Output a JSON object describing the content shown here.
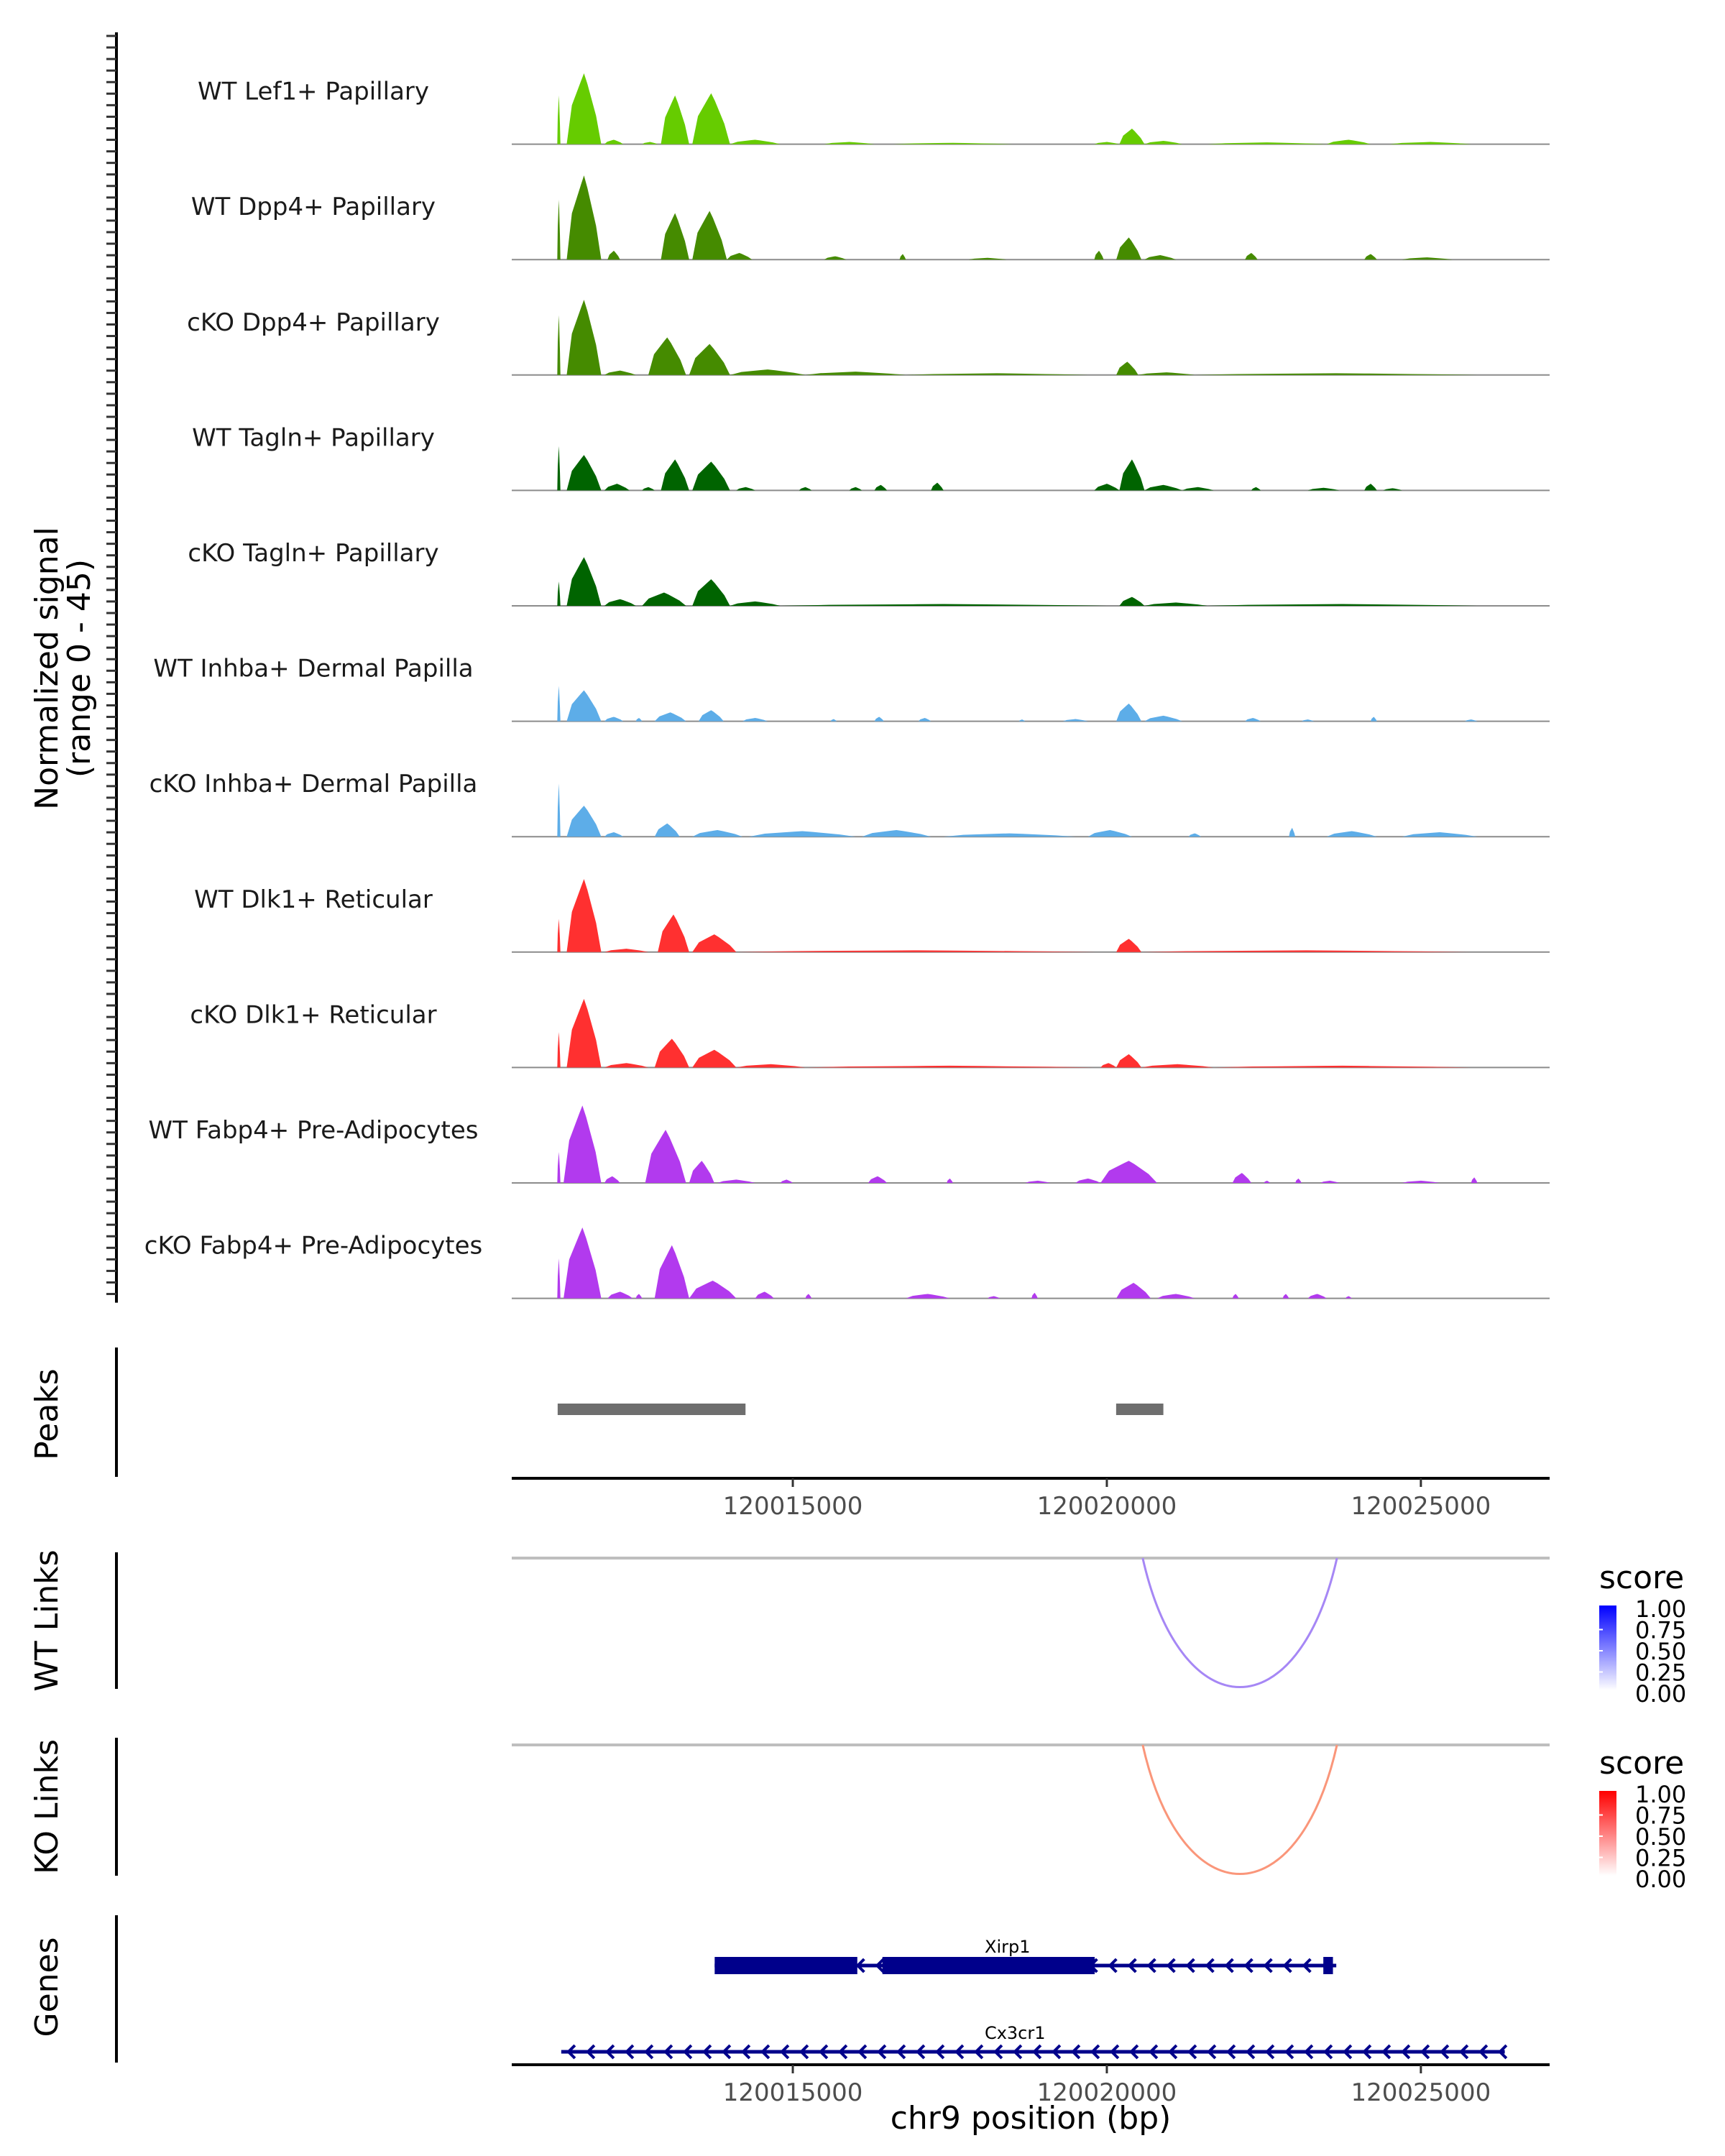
{
  "chart_data": {
    "type": "area",
    "title": "",
    "ylabel": "Normalized signal",
    "ylabel_range": "(range 0 - 45)",
    "ylim": [
      0,
      45
    ],
    "xlabel": "chr9 position (bp)",
    "xlim": [
      120010525,
      120027050
    ],
    "xticks": [
      120015000,
      120020000,
      120025000
    ],
    "xtick_labels": [
      "120015000",
      "120020000",
      "120025000"
    ],
    "coverage_tracks": [
      {
        "name": "WT Lef1+ Papillary",
        "color": "#66CC00",
        "peaks": [
          [
            120011250,
            120011300,
            22
          ],
          [
            120011400,
            120011950,
            32
          ],
          [
            120012000,
            120012300,
            2
          ],
          [
            120012600,
            120012850,
            1
          ],
          [
            120012900,
            120013350,
            22
          ],
          [
            120013400,
            120014000,
            23
          ],
          [
            120014000,
            120014800,
            2
          ],
          [
            120015500,
            120016300,
            1
          ],
          [
            120016600,
            120018500,
            0.6
          ],
          [
            120019800,
            120020200,
            1
          ],
          [
            120020200,
            120020600,
            7
          ],
          [
            120020600,
            120021200,
            1.5
          ],
          [
            120021600,
            120023500,
            0.8
          ],
          [
            120023500,
            120024200,
            2
          ],
          [
            120024500,
            120025800,
            1
          ]
        ]
      },
      {
        "name": "WT Dpp4+ Papillary",
        "color": "#458B00",
        "peaks": [
          [
            120011250,
            120011300,
            27
          ],
          [
            120011400,
            120011950,
            38
          ],
          [
            120012050,
            120012250,
            4
          ],
          [
            120012900,
            120013350,
            21
          ],
          [
            120013400,
            120013950,
            22
          ],
          [
            120013950,
            120014350,
            3
          ],
          [
            120015500,
            120015850,
            1.5
          ],
          [
            120016700,
            120016800,
            2.5
          ],
          [
            120017800,
            120018400,
            0.8
          ],
          [
            120019800,
            120019950,
            4
          ],
          [
            120020150,
            120020550,
            10
          ],
          [
            120020600,
            120021100,
            2
          ],
          [
            120022200,
            120022400,
            3
          ],
          [
            120024100,
            120024300,
            2.5
          ],
          [
            120024700,
            120025500,
            1
          ]
        ]
      },
      {
        "name": "cKO Dpp4+ Papillary",
        "color": "#458B00",
        "peaks": [
          [
            120011250,
            120011300,
            27
          ],
          [
            120011400,
            120011950,
            34
          ],
          [
            120012000,
            120012500,
            2
          ],
          [
            120012700,
            120013300,
            17
          ],
          [
            120013350,
            120014000,
            14
          ],
          [
            120014000,
            120015200,
            2.5
          ],
          [
            120015200,
            120016800,
            1.5
          ],
          [
            120016800,
            120019700,
            0.8
          ],
          [
            120020150,
            120020500,
            6
          ],
          [
            120020500,
            120021400,
            1.2
          ],
          [
            120021400,
            120025900,
            0.8
          ]
        ]
      },
      {
        "name": "WT Tagln+ Papillary",
        "color": "#006400",
        "peaks": [
          [
            120011250,
            120011300,
            20
          ],
          [
            120011400,
            120011950,
            16
          ],
          [
            120012000,
            120012400,
            3
          ],
          [
            120012600,
            120012800,
            1.5
          ],
          [
            120012900,
            120013350,
            14
          ],
          [
            120013400,
            120014000,
            13
          ],
          [
            120014100,
            120014400,
            1.5
          ],
          [
            120015100,
            120015300,
            1.5
          ],
          [
            120015900,
            120016100,
            1.5
          ],
          [
            120016300,
            120016500,
            2.5
          ],
          [
            120017200,
            120017400,
            3.5
          ],
          [
            120019800,
            120020200,
            3
          ],
          [
            120020200,
            120020600,
            14
          ],
          [
            120020600,
            120021200,
            2.5
          ],
          [
            120021200,
            120021700,
            1.5
          ],
          [
            120022300,
            120022450,
            1.5
          ],
          [
            120023200,
            120023700,
            1.2
          ],
          [
            120024100,
            120024300,
            3
          ],
          [
            120024400,
            120024700,
            1
          ]
        ]
      },
      {
        "name": "cKO Tagln+ Papillary",
        "color": "#006400",
        "peaks": [
          [
            120011250,
            120011300,
            11
          ],
          [
            120011400,
            120011950,
            22
          ],
          [
            120012000,
            120012500,
            3
          ],
          [
            120012600,
            120013300,
            6
          ],
          [
            120013400,
            120014000,
            12
          ],
          [
            120014000,
            120014800,
            2
          ],
          [
            120014800,
            120020000,
            0.8
          ],
          [
            120020200,
            120020600,
            4
          ],
          [
            120020600,
            120021600,
            1.5
          ],
          [
            120021600,
            120025900,
            0.8
          ]
        ]
      },
      {
        "name": "WT Inhba+ Dermal Papilla",
        "color": "#5DADE8",
        "peaks": [
          [
            120011250,
            120011300,
            16
          ],
          [
            120011400,
            120011950,
            14
          ],
          [
            120012000,
            120012300,
            2
          ],
          [
            120012500,
            120012600,
            1.5
          ],
          [
            120012800,
            120013300,
            4
          ],
          [
            120013500,
            120013900,
            5
          ],
          [
            120014200,
            120014600,
            1.5
          ],
          [
            120015600,
            120015700,
            1
          ],
          [
            120016300,
            120016450,
            2
          ],
          [
            120017000,
            120017200,
            1.5
          ],
          [
            120018600,
            120018700,
            0.8
          ],
          [
            120019300,
            120019700,
            1
          ],
          [
            120020150,
            120020550,
            8
          ],
          [
            120020600,
            120021200,
            2.5
          ],
          [
            120022200,
            120022450,
            1.5
          ],
          [
            120023100,
            120023300,
            0.8
          ],
          [
            120024200,
            120024300,
            2
          ],
          [
            120025700,
            120025900,
            0.8
          ]
        ]
      },
      {
        "name": "cKO Inhba+ Dermal Papilla",
        "color": "#5DADE8",
        "peaks": [
          [
            120011250,
            120011300,
            24
          ],
          [
            120011400,
            120011950,
            14
          ],
          [
            120012000,
            120012300,
            2
          ],
          [
            120012800,
            120013200,
            6
          ],
          [
            120013400,
            120014200,
            3
          ],
          [
            120014300,
            120016000,
            2.5
          ],
          [
            120016100,
            120017200,
            3
          ],
          [
            120017400,
            120019500,
            1.5
          ],
          [
            120019700,
            120020400,
            3
          ],
          [
            120021300,
            120021500,
            1.5
          ],
          [
            120022900,
            120023000,
            4
          ],
          [
            120023500,
            120024300,
            2.5
          ],
          [
            120024700,
            120025900,
            2
          ]
        ]
      },
      {
        "name": "WT Dlk1+ Reticular",
        "color": "#FF3030",
        "peaks": [
          [
            120011250,
            120011300,
            15
          ],
          [
            120011400,
            120011950,
            33
          ],
          [
            120012000,
            120012700,
            1.5
          ],
          [
            120012850,
            120013350,
            17
          ],
          [
            120013400,
            120014100,
            8
          ],
          [
            120014100,
            120019900,
            0.8
          ],
          [
            120020150,
            120020550,
            6
          ],
          [
            120020550,
            120025800,
            0.8
          ]
        ]
      },
      {
        "name": "cKO Dlk1+ Reticular",
        "color": "#FF3030",
        "peaks": [
          [
            120011250,
            120011300,
            16
          ],
          [
            120011400,
            120011950,
            31
          ],
          [
            120012000,
            120012700,
            2
          ],
          [
            120012800,
            120013350,
            13
          ],
          [
            120013400,
            120014100,
            8
          ],
          [
            120014100,
            120015200,
            1.5
          ],
          [
            120015200,
            120019800,
            0.8
          ],
          [
            120019900,
            120020150,
            2
          ],
          [
            120020150,
            120020550,
            6
          ],
          [
            120020550,
            120021700,
            1.5
          ],
          [
            120021700,
            120025800,
            0.8
          ]
        ]
      },
      {
        "name": "WT Fabp4+ Pre-Adipocytes",
        "color": "#B23AEE",
        "peaks": [
          [
            120011250,
            120011300,
            14
          ],
          [
            120011350,
            120011950,
            35
          ],
          [
            120012000,
            120012250,
            3
          ],
          [
            120012650,
            120013300,
            24
          ],
          [
            120013350,
            120013750,
            10
          ],
          [
            120013800,
            120014400,
            1.5
          ],
          [
            120014800,
            120015000,
            1.5
          ],
          [
            120016200,
            120016500,
            3
          ],
          [
            120017450,
            120017550,
            2
          ],
          [
            120018700,
            120019100,
            1
          ],
          [
            120019500,
            120019900,
            2
          ],
          [
            120019900,
            120020800,
            10
          ],
          [
            120022000,
            120022300,
            4.5
          ],
          [
            120022500,
            120022600,
            1
          ],
          [
            120023000,
            120023100,
            2
          ],
          [
            120023400,
            120023700,
            1
          ],
          [
            120024700,
            120025300,
            1
          ],
          [
            120025800,
            120025900,
            2.5
          ]
        ]
      },
      {
        "name": "cKO Fabp4+ Pre-Adipocytes",
        "color": "#B23AEE",
        "peaks": [
          [
            120011250,
            120011300,
            18
          ],
          [
            120011350,
            120011950,
            32
          ],
          [
            120012050,
            120012450,
            3
          ],
          [
            120012500,
            120012600,
            2
          ],
          [
            120012800,
            120013350,
            24
          ],
          [
            120013350,
            120014100,
            8
          ],
          [
            120014400,
            120014700,
            3
          ],
          [
            120015200,
            120015300,
            2
          ],
          [
            120016800,
            120017500,
            2
          ],
          [
            120018100,
            120018300,
            1
          ],
          [
            120018800,
            120018900,
            2.5
          ],
          [
            120020150,
            120020700,
            7
          ],
          [
            120020800,
            120021400,
            2
          ],
          [
            120022000,
            120022100,
            2
          ],
          [
            120022800,
            120022900,
            2
          ],
          [
            120023200,
            120023500,
            2
          ],
          [
            120023800,
            120023900,
            1
          ]
        ]
      }
    ],
    "peaks_track": {
      "label": "Peaks",
      "color": "#6E6E6E",
      "regions": [
        [
          120011256,
          120014247
        ],
        [
          120020148,
          120020900
        ]
      ]
    },
    "links_tracks": [
      {
        "label": "WT Links",
        "color_low": "#FFFFFF",
        "color_high": "#0000FF",
        "arc_color": "#A687F5",
        "links": [
          {
            "start": 120020571,
            "end": 120023664,
            "score": 0.5
          }
        ],
        "legend": {
          "title": "score",
          "ticks": [
            "1.00",
            "0.75",
            "0.50",
            "0.25",
            "0.00"
          ]
        }
      },
      {
        "label": "KO Links",
        "color_low": "#FFFFFF",
        "color_high": "#FF0000",
        "arc_color": "#FA967A",
        "links": [
          {
            "start": 120020571,
            "end": 120023664,
            "score": 0.5
          }
        ],
        "legend": {
          "title": "score",
          "ticks": [
            "1.00",
            "0.75",
            "0.50",
            "0.25",
            "0.00"
          ]
        }
      }
    ],
    "genes_track": {
      "label": "Genes",
      "color": "#00008B",
      "genes": [
        {
          "name": "Xirp1",
          "strand": "-",
          "start": 120013756,
          "end": 120023653,
          "exons": [
            [
              120013756,
              120016027
            ],
            [
              120016427,
              120019806
            ],
            [
              120023447,
              120023600
            ]
          ]
        },
        {
          "name": "Cx3cr1",
          "strand": "-",
          "start": 120011313,
          "end": 120026336,
          "exons": []
        }
      ]
    }
  }
}
